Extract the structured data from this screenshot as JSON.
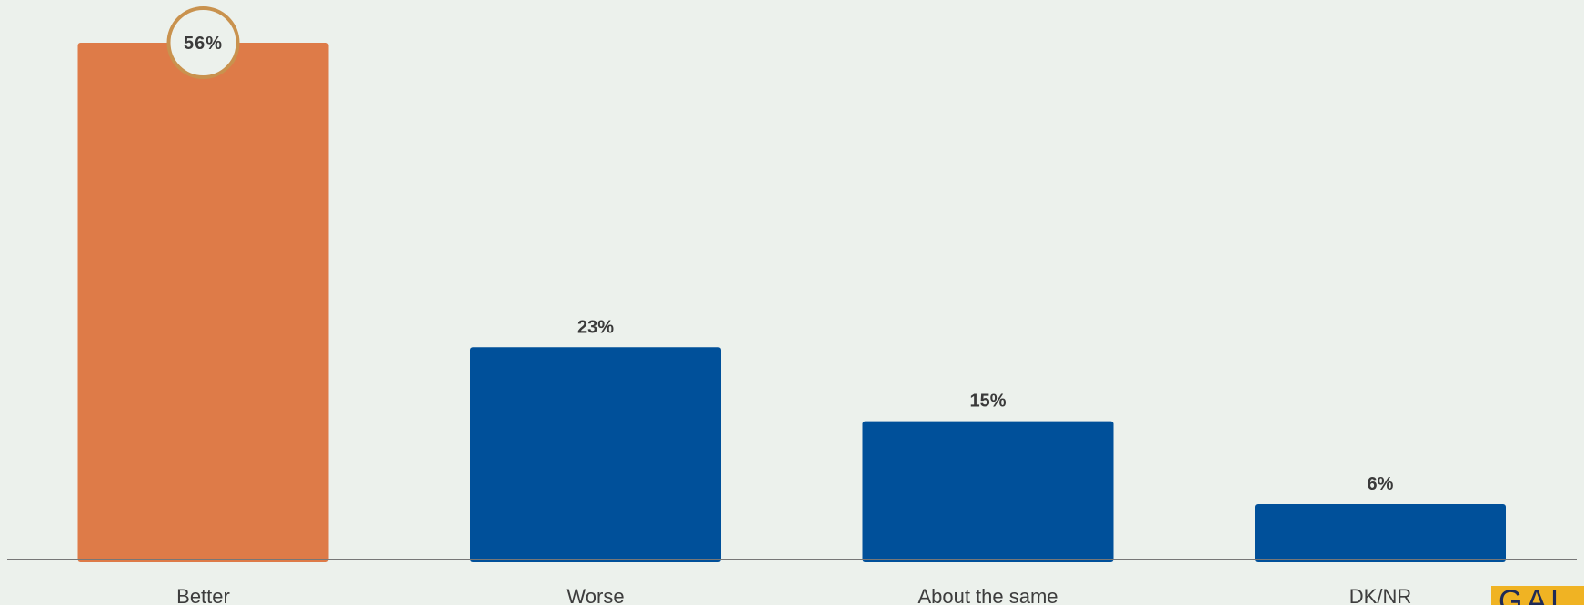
{
  "chart_data": {
    "type": "bar",
    "categories": [
      "Better",
      "Worse",
      "About the same",
      "DK/NR"
    ],
    "values": [
      56,
      23,
      15,
      6
    ],
    "value_labels": [
      "56%",
      "23%",
      "15%",
      "6%"
    ],
    "highlight_index": 0,
    "colors": {
      "highlight": "#de7b48",
      "default": "#00509a",
      "highlight_ring": "#c9924e",
      "axis": "#777777"
    },
    "title": "",
    "xlabel": "",
    "ylabel": "",
    "ylim": [
      0,
      56
    ],
    "grid": false,
    "legend": "none"
  },
  "logo": {
    "text": "GAL"
  }
}
